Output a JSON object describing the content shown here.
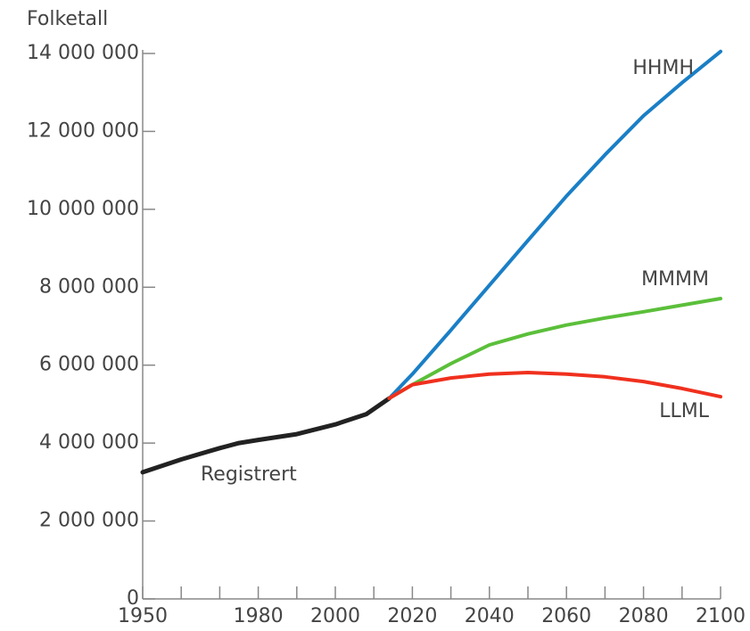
{
  "chart_data": {
    "type": "line",
    "ylabel": "Folketall",
    "xlim": [
      1950,
      2100
    ],
    "xticks": [
      1950,
      1980,
      2000,
      2020,
      2040,
      2060,
      2080,
      2100
    ],
    "xminorticks": [
      1960,
      1970,
      1990,
      2010,
      2030,
      2050,
      2070,
      2090
    ],
    "ylim": [
      0,
      14000000
    ],
    "yticks": [
      0,
      {
        "value": 2000000,
        "label": "2 000 000"
      },
      {
        "value": 4000000,
        "label": "4 000 000"
      },
      {
        "value": 6000000,
        "label": "6 000 000"
      },
      {
        "value": 8000000,
        "label": "8 000 000"
      },
      {
        "value": 10000000,
        "label": "10 000 000"
      },
      {
        "value": 12000000,
        "label": "12 000 000"
      },
      {
        "value": 14000000,
        "label": "14 000 000"
      }
    ],
    "series": [
      {
        "name": "Registrert",
        "color": "#222222",
        "x": [
          1950,
          1960,
          1970,
          1975,
          1980,
          1990,
          2000,
          2008,
          2014
        ],
        "values": [
          3250000,
          3580000,
          3870000,
          4000000,
          4080000,
          4230000,
          4480000,
          4740000,
          5150000
        ]
      },
      {
        "name": "HHMH",
        "color": "#1a7fc6",
        "x": [
          2014,
          2020,
          2030,
          2040,
          2050,
          2060,
          2070,
          2080,
          2090,
          2100
        ],
        "values": [
          5150000,
          5770000,
          6900000,
          8050000,
          9200000,
          10340000,
          11400000,
          12400000,
          13250000,
          14050000
        ]
      },
      {
        "name": "MMMM",
        "color": "#5bbf3a",
        "x": [
          2014,
          2020,
          2030,
          2040,
          2050,
          2060,
          2070,
          2080,
          2090,
          2100
        ],
        "values": [
          5150000,
          5500000,
          6040000,
          6520000,
          6800000,
          7030000,
          7210000,
          7370000,
          7540000,
          7710000
        ]
      },
      {
        "name": "LLML",
        "color": "#f0301e",
        "x": [
          2014,
          2020,
          2030,
          2040,
          2050,
          2060,
          2070,
          2080,
          2090,
          2100
        ],
        "values": [
          5150000,
          5500000,
          5670000,
          5770000,
          5810000,
          5770000,
          5700000,
          5580000,
          5400000,
          5190000
        ]
      }
    ]
  }
}
